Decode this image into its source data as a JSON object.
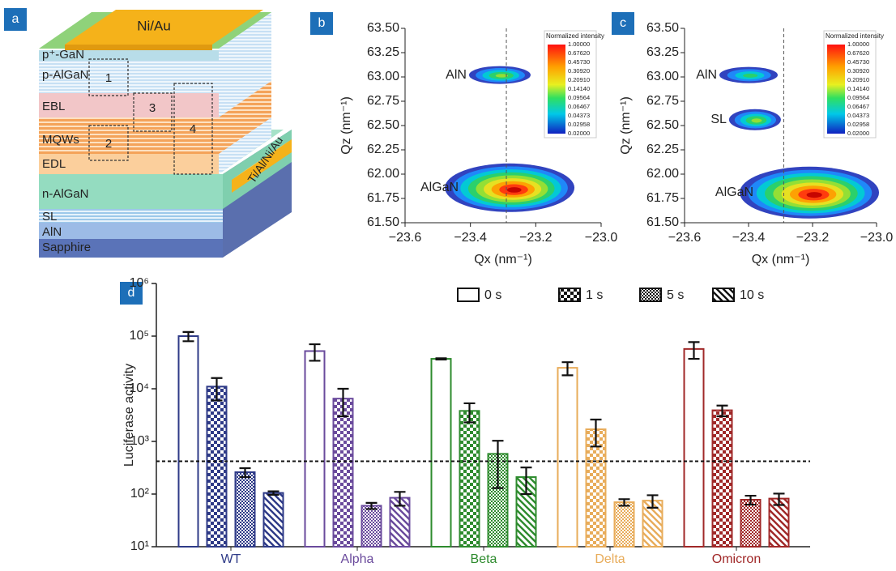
{
  "diagram": {
    "panel": "a",
    "top_contact": "Ni/Au",
    "side_contact": "Ti/Al/Ni/Au",
    "layers": [
      "p⁺-GaN",
      "p-AlGaN",
      "EBL",
      "MQWs",
      "EDL",
      "n-AlGaN",
      "SL",
      "AlN",
      "Sapphire"
    ],
    "regions": [
      "1",
      "2",
      "3",
      "4"
    ]
  },
  "chart_data": [
    {
      "type": "heatmap",
      "panel": "b",
      "xlabel": "Qx (nm⁻¹)",
      "ylabel": "Qz (nm⁻¹)",
      "xlim": [
        -23.6,
        -23.0
      ],
      "xticks": [
        {
          "value": -23.6,
          "label": "−23.6"
        },
        {
          "value": -23.4,
          "label": "−23.4"
        },
        {
          "value": -23.2,
          "label": "−23.2"
        },
        {
          "value": -23.0,
          "label": "−23.0"
        }
      ],
      "ylim": [
        61.5,
        63.5
      ],
      "yticks": [
        {
          "value": 61.5,
          "label": "61.50"
        },
        {
          "value": 61.75,
          "label": "61.75"
        },
        {
          "value": 62,
          "label": "62.00"
        },
        {
          "value": 62.25,
          "label": "62.25"
        },
        {
          "value": 62.5,
          "label": "62.50"
        },
        {
          "value": 62.75,
          "label": "62.75"
        },
        {
          "value": 63,
          "label": "63.00"
        },
        {
          "value": 63.25,
          "label": "63.25"
        },
        {
          "value": 63.5,
          "label": "63.50"
        }
      ],
      "reference_x": -23.29,
      "peaks": [
        {
          "label": "AlN",
          "x": -23.31,
          "y": 63.02,
          "intensity": 0.3
        },
        {
          "label": "AlGaN",
          "x": -23.28,
          "y": 61.86,
          "intensity": 1
        }
      ],
      "colorbar": {
        "title": "Normalized intensity",
        "ticks": [
          {
            "value": 1,
            "label": "1.00000"
          },
          {
            "value": 0.6762,
            "label": "0.67620"
          },
          {
            "value": 0.4573,
            "label": "0.45730"
          },
          {
            "value": 0.3092,
            "label": "0.30920"
          },
          {
            "value": 0.2091,
            "label": "0.20910"
          },
          {
            "value": 0.1414,
            "label": "0.14140"
          },
          {
            "value": 0.09564,
            "label": "0.09564"
          },
          {
            "value": 0.06467,
            "label": "0.06467"
          },
          {
            "value": 0.04373,
            "label": "0.04373"
          },
          {
            "value": 0.02958,
            "label": "0.02958"
          },
          {
            "value": 0.02,
            "label": "0.02000"
          }
        ]
      }
    },
    {
      "type": "heatmap",
      "panel": "c",
      "xlabel": "Qx (nm⁻¹)",
      "ylabel": "Qz (nm⁻¹)",
      "xlim": [
        -23.6,
        -23.0
      ],
      "xticks": [
        {
          "value": -23.6,
          "label": "−23.6"
        },
        {
          "value": -23.4,
          "label": "−23.4"
        },
        {
          "value": -23.2,
          "label": "−23.2"
        },
        {
          "value": -23.0,
          "label": "−23.0"
        }
      ],
      "ylim": [
        61.5,
        63.5
      ],
      "yticks": [
        {
          "value": 61.5,
          "label": "61.50"
        },
        {
          "value": 61.75,
          "label": "61.75"
        },
        {
          "value": 62,
          "label": "62.00"
        },
        {
          "value": 62.25,
          "label": "62.25"
        },
        {
          "value": 62.5,
          "label": "62.50"
        },
        {
          "value": 62.75,
          "label": "62.75"
        },
        {
          "value": 63,
          "label": "63.00"
        },
        {
          "value": 63.25,
          "label": "63.25"
        },
        {
          "value": 63.5,
          "label": "63.50"
        }
      ],
      "reference_x": -23.29,
      "peaks": [
        {
          "label": "AlN",
          "x": -23.4,
          "y": 63.02,
          "intensity": 0.2
        },
        {
          "label": "SL",
          "x": -23.38,
          "y": 62.56,
          "intensity": 0.3
        },
        {
          "label": "AlGaN",
          "x": -23.21,
          "y": 61.81,
          "intensity": 1
        }
      ],
      "colorbar": {
        "title": "Normalized intensity",
        "ticks": [
          {
            "value": 1,
            "label": "1.00000"
          },
          {
            "value": 0.6762,
            "label": "0.67620"
          },
          {
            "value": 0.4573,
            "label": "0.45730"
          },
          {
            "value": 0.3092,
            "label": "0.30920"
          },
          {
            "value": 0.2091,
            "label": "0.20910"
          },
          {
            "value": 0.1414,
            "label": "0.14140"
          },
          {
            "value": 0.09564,
            "label": "0.09564"
          },
          {
            "value": 0.06467,
            "label": "0.06467"
          },
          {
            "value": 0.04373,
            "label": "0.04373"
          },
          {
            "value": 0.02958,
            "label": "0.02958"
          },
          {
            "value": 0.02,
            "label": "0.02000"
          }
        ]
      }
    },
    {
      "type": "bar",
      "panel": "d",
      "ylabel": "Luciferase activity",
      "log_scale": true,
      "ylim": [
        10,
        1000000
      ],
      "yticks": [
        {
          "value": 10,
          "label": "10¹"
        },
        {
          "value": 100,
          "label": "10²"
        },
        {
          "value": 1000,
          "label": "10³"
        },
        {
          "value": 10000,
          "label": "10⁴"
        },
        {
          "value": 100000,
          "label": "10⁵"
        },
        {
          "value": 1000000,
          "label": "10⁶"
        }
      ],
      "categories": [
        "WT",
        "Alpha",
        "Beta",
        "Delta",
        "Omicron"
      ],
      "category_colors": [
        "#2e3a87",
        "#6a4a9c",
        "#2e8b2e",
        "#e8ac5a",
        "#a02828"
      ],
      "series": [
        {
          "name": "0 s",
          "pattern": "outline",
          "values": [
            100000,
            52000,
            37000,
            25000,
            57000
          ],
          "errors": [
            20000,
            18000,
            1000,
            7000,
            20000
          ]
        },
        {
          "name": "1 s",
          "pattern": "checker",
          "values": [
            11000,
            6500,
            3800,
            1700,
            3900
          ],
          "errors": [
            5000,
            3500,
            1500,
            900,
            900
          ]
        },
        {
          "name": "5 s",
          "pattern": "fine-checker",
          "values": [
            260,
            60,
            580,
            70,
            78
          ],
          "errors": [
            50,
            8,
            450,
            10,
            15
          ]
        },
        {
          "name": "10 s",
          "pattern": "diagonal",
          "values": [
            105,
            85,
            210,
            75,
            82
          ],
          "errors": [
            8,
            25,
            110,
            20,
            20
          ]
        }
      ],
      "reference_line": 420,
      "legend": "top-right"
    }
  ]
}
